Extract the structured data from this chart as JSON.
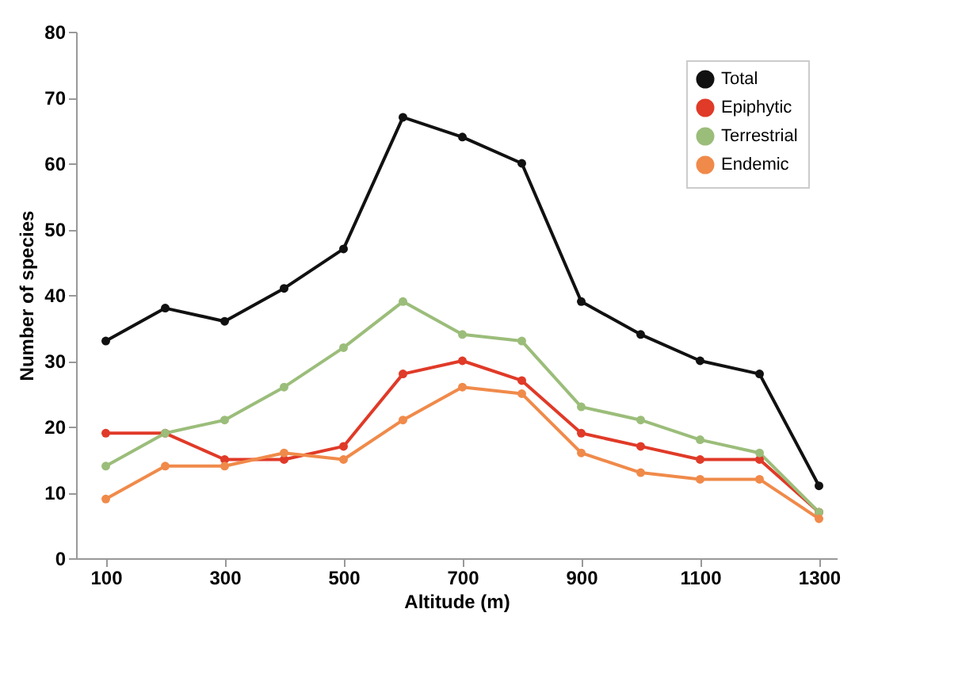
{
  "chart_data": {
    "type": "line",
    "xlabel": "Altitude (m)",
    "ylabel": "Number of species",
    "x": [
      100,
      200,
      300,
      400,
      500,
      600,
      700,
      800,
      900,
      1000,
      1100,
      1200,
      1300
    ],
    "series": [
      {
        "name": "Total",
        "color": "#111111",
        "values": [
          33,
          38,
          36,
          41,
          47,
          67,
          64,
          60,
          39,
          34,
          30,
          28,
          11
        ]
      },
      {
        "name": "Epiphytic",
        "color": "#e03a28",
        "values": [
          19,
          19,
          15,
          15,
          17,
          28,
          30,
          27,
          19,
          17,
          15,
          15,
          7
        ]
      },
      {
        "name": "Terrestrial",
        "color": "#9bbd7a",
        "values": [
          14,
          19,
          21,
          26,
          32,
          39,
          34,
          33,
          23,
          21,
          18,
          16,
          7
        ]
      },
      {
        "name": "Endemic",
        "color": "#f08a4a",
        "values": [
          9,
          14,
          14,
          16,
          15,
          21,
          26,
          25,
          16,
          13,
          12,
          12,
          6
        ]
      }
    ],
    "xlim": [
      50,
      1330
    ],
    "xticks": [
      100,
      300,
      500,
      700,
      900,
      1100,
      1300
    ],
    "ylim": [
      0,
      80
    ],
    "yticks": [
      0,
      10,
      20,
      30,
      40,
      50,
      60,
      70,
      80
    ],
    "grid": false,
    "legend": "top right",
    "marker": "circle",
    "line_style": "solid"
  }
}
